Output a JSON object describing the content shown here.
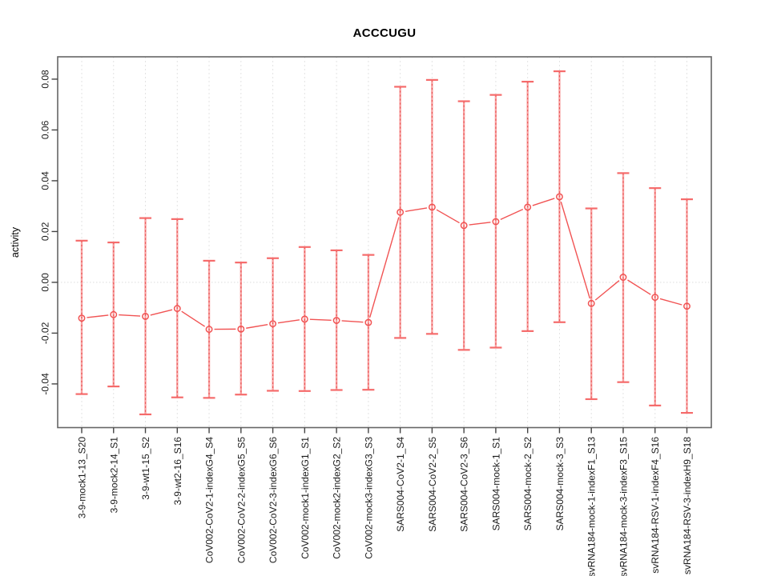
{
  "chart_data": {
    "type": "line",
    "title": "ACCCUGU",
    "xlabel": "",
    "ylabel": "activity",
    "ylim": [
      -0.0572,
      0.0888
    ],
    "yticks": [
      -0.04,
      -0.02,
      0,
      0.02,
      0.04,
      0.06,
      0.08
    ],
    "ytick_labels": [
      "-0.04",
      "-0.02",
      "0.00",
      "0.02",
      "0.04",
      "0.06",
      "0.08"
    ],
    "legend": "none",
    "grid": {
      "vertical_per_category": true,
      "horizontal_zero_line": true
    },
    "point_style": "open-circle-with-line-gaps",
    "error_bars": "whiskers-with-caps",
    "colors": {
      "series": "#f15353",
      "error_bar": "#f8a2a2",
      "error_cap": "#f56b6b",
      "error_dash": "#e84b4b",
      "grid": "#e3e3e3",
      "zero_line": "#e0e0e0",
      "axis_box": "#666666",
      "tick": "#444444",
      "text": "#1a1a1a"
    },
    "categories": [
      "3-9-mock1-13_S20",
      "3-9-mock2-14_S1",
      "3-9-wt1-15_S2",
      "3-9-wt2-16_S16",
      "CoV002-CoV2-1-indexG4_S4",
      "CoV002-CoV2-2-indexG5_S5",
      "CoV002-CoV2-3-indexG6_S6",
      "CoV002-mock1-indexG1_S1",
      "CoV002-mock2-indexG2_S2",
      "CoV002-mock3-indexG3_S3",
      "SARS004-CoV2-1_S4",
      "SARS004-CoV2-2_S5",
      "SARS004-CoV2-3_S6",
      "SARS004-mock-1_S1",
      "SARS004-mock-2_S2",
      "SARS004-mock-3_S3",
      "svRNA184-mock-1-indexF1_S13",
      "svRNA184-mock-3-indexF3_S15",
      "svRNA184-RSV-1-indexF4_S16",
      "svRNA184-RSV-3-indexH9_S18"
    ],
    "series": [
      {
        "name": "activity",
        "values": [
          -0.0141,
          -0.0127,
          -0.0134,
          -0.0103,
          -0.0185,
          -0.0184,
          -0.0163,
          -0.0145,
          -0.015,
          -0.0158,
          0.0276,
          0.0296,
          0.0224,
          0.0239,
          0.0296,
          0.0337,
          -0.0083,
          0.002,
          -0.0059,
          -0.0094
        ],
        "error_high": [
          0.0164,
          0.0157,
          0.0253,
          0.0249,
          0.0085,
          0.0078,
          0.0095,
          0.0139,
          0.0126,
          0.0108,
          0.077,
          0.0797,
          0.0713,
          0.0738,
          0.079,
          0.0831,
          0.0291,
          0.043,
          0.0371,
          0.0327
        ],
        "error_low": [
          -0.044,
          -0.041,
          -0.052,
          -0.0453,
          -0.0455,
          -0.0442,
          -0.0427,
          -0.0428,
          -0.0424,
          -0.0423,
          -0.0219,
          -0.0203,
          -0.0266,
          -0.0257,
          -0.0192,
          -0.0157,
          -0.046,
          -0.0393,
          -0.0485,
          -0.0514
        ]
      }
    ]
  }
}
